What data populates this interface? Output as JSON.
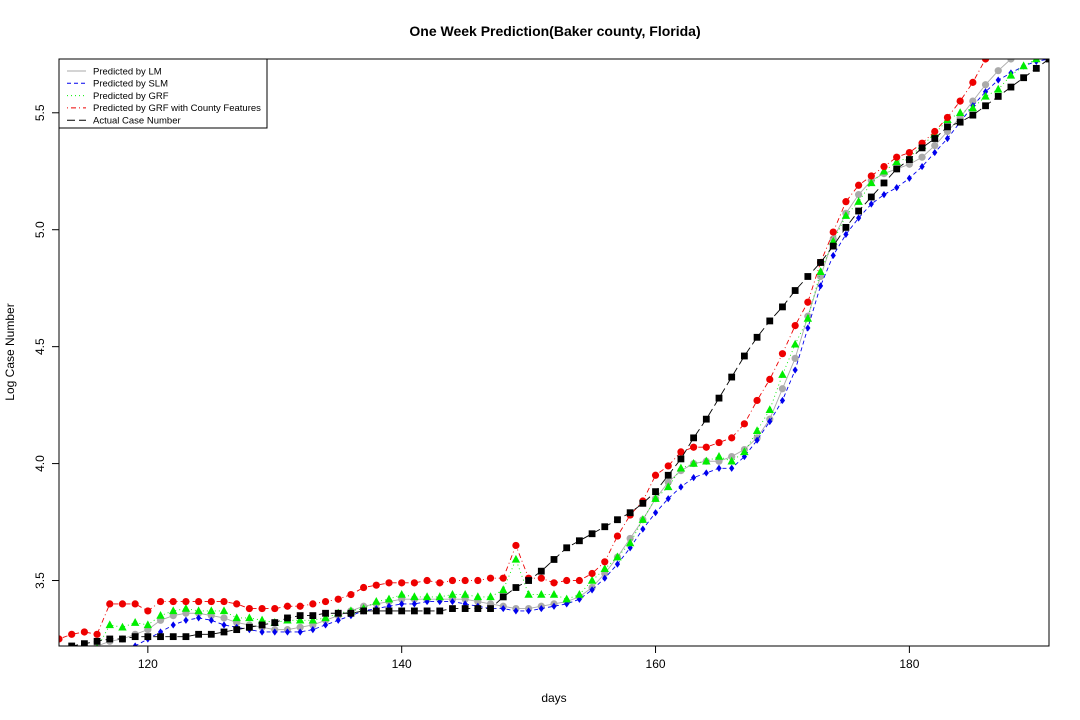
{
  "chart_data": {
    "type": "line",
    "title": "One Week Prediction(Baker county, Florida)",
    "xlabel": "days",
    "ylabel": "Log Case Number",
    "xlim": [
      113,
      191
    ],
    "ylim": [
      3.22,
      5.73
    ],
    "xticks": [
      120,
      140,
      160,
      180
    ],
    "yticks": [
      3.5,
      4.0,
      4.5,
      5.0,
      5.5
    ],
    "legend_position": "top-left",
    "x": [
      113,
      114,
      115,
      116,
      117,
      118,
      119,
      120,
      121,
      122,
      123,
      124,
      125,
      126,
      127,
      128,
      129,
      130,
      131,
      132,
      133,
      134,
      135,
      136,
      137,
      138,
      139,
      140,
      141,
      142,
      143,
      144,
      145,
      146,
      147,
      148,
      149,
      150,
      151,
      152,
      153,
      154,
      155,
      156,
      157,
      158,
      159,
      160,
      161,
      162,
      163,
      164,
      165,
      166,
      167,
      168,
      169,
      170,
      171,
      172,
      173,
      174,
      175,
      176,
      177,
      178,
      179,
      180,
      181,
      182,
      183,
      184,
      185,
      186,
      187,
      188,
      189,
      190,
      191
    ],
    "series": [
      {
        "name": "Predicted by LM",
        "color": "#aaaaaa",
        "marker": "circle",
        "line_style": "solid",
        "values": [
          3.2,
          3.2,
          3.21,
          3.22,
          3.24,
          3.25,
          3.27,
          3.29,
          3.33,
          3.35,
          3.36,
          3.36,
          3.35,
          3.34,
          3.32,
          3.31,
          3.3,
          3.29,
          3.29,
          3.3,
          3.31,
          3.33,
          3.35,
          3.37,
          3.39,
          3.4,
          3.41,
          3.42,
          3.42,
          3.42,
          3.42,
          3.42,
          3.42,
          3.41,
          3.4,
          3.39,
          3.38,
          3.38,
          3.39,
          3.4,
          3.41,
          3.43,
          3.47,
          3.53,
          3.6,
          3.68,
          3.76,
          3.85,
          3.92,
          3.97,
          4.0,
          4.01,
          4.01,
          4.03,
          4.06,
          4.11,
          4.19,
          4.32,
          4.45,
          4.63,
          4.8,
          4.96,
          5.07,
          5.15,
          5.21,
          5.24,
          5.26,
          5.28,
          5.31,
          5.36,
          5.42,
          5.48,
          5.55,
          5.62,
          5.68,
          5.73,
          5.76,
          5.78,
          5.8
        ]
      },
      {
        "name": "Predicted by SLM",
        "color": "#0000ee",
        "marker": "diamond",
        "line_style": "dashed",
        "values": [
          3.18,
          3.18,
          3.19,
          3.19,
          3.19,
          3.2,
          3.22,
          3.25,
          3.28,
          3.31,
          3.33,
          3.34,
          3.33,
          3.31,
          3.3,
          3.29,
          3.28,
          3.28,
          3.28,
          3.28,
          3.29,
          3.31,
          3.33,
          3.35,
          3.37,
          3.38,
          3.39,
          3.4,
          3.4,
          3.41,
          3.41,
          3.41,
          3.4,
          3.39,
          3.38,
          3.38,
          3.37,
          3.37,
          3.38,
          3.39,
          3.4,
          3.42,
          3.46,
          3.51,
          3.57,
          3.64,
          3.72,
          3.79,
          3.85,
          3.9,
          3.94,
          3.96,
          3.98,
          3.98,
          4.03,
          4.1,
          4.18,
          4.27,
          4.4,
          4.58,
          4.76,
          4.89,
          4.98,
          5.05,
          5.11,
          5.15,
          5.18,
          5.22,
          5.27,
          5.33,
          5.39,
          5.46,
          5.53,
          5.59,
          5.64,
          5.67,
          5.7,
          5.72,
          5.73
        ]
      },
      {
        "name": "Predicted by GRF",
        "color": "#00ee00",
        "marker": "triangle",
        "line_style": "dotted",
        "values": [
          3.18,
          3.19,
          3.2,
          3.21,
          3.31,
          3.3,
          3.32,
          3.31,
          3.35,
          3.37,
          3.38,
          3.37,
          3.37,
          3.37,
          3.34,
          3.34,
          3.33,
          3.32,
          3.33,
          3.33,
          3.33,
          3.34,
          3.36,
          3.37,
          3.38,
          3.41,
          3.42,
          3.44,
          3.43,
          3.43,
          3.43,
          3.44,
          3.44,
          3.43,
          3.43,
          3.46,
          3.59,
          3.44,
          3.44,
          3.44,
          3.42,
          3.44,
          3.5,
          3.55,
          3.6,
          3.66,
          3.76,
          3.85,
          3.9,
          3.98,
          4.0,
          4.01,
          4.03,
          4.01,
          4.05,
          4.14,
          4.23,
          4.38,
          4.51,
          4.62,
          4.82,
          4.95,
          5.06,
          5.12,
          5.2,
          5.25,
          5.29,
          5.31,
          5.36,
          5.41,
          5.47,
          5.5,
          5.52,
          5.57,
          5.6,
          5.66,
          5.7,
          5.73,
          5.75
        ]
      },
      {
        "name": "Predicted by GRF with County Features",
        "color": "#ee0000",
        "marker": "circle",
        "line_style": "dotdash",
        "values": [
          3.25,
          3.27,
          3.28,
          3.27,
          3.4,
          3.4,
          3.4,
          3.37,
          3.41,
          3.41,
          3.41,
          3.41,
          3.41,
          3.41,
          3.4,
          3.38,
          3.38,
          3.38,
          3.39,
          3.39,
          3.4,
          3.41,
          3.42,
          3.44,
          3.47,
          3.48,
          3.49,
          3.49,
          3.49,
          3.5,
          3.49,
          3.5,
          3.5,
          3.5,
          3.51,
          3.51,
          3.65,
          3.51,
          3.51,
          3.49,
          3.5,
          3.5,
          3.53,
          3.58,
          3.69,
          3.78,
          3.84,
          3.95,
          3.99,
          4.05,
          4.07,
          4.07,
          4.09,
          4.11,
          4.17,
          4.27,
          4.36,
          4.47,
          4.59,
          4.69,
          4.86,
          4.99,
          5.12,
          5.19,
          5.23,
          5.27,
          5.31,
          5.33,
          5.37,
          5.42,
          5.48,
          5.55,
          5.63,
          5.73,
          5.8,
          5.86,
          5.9,
          5.93,
          5.95
        ]
      },
      {
        "name": "Actual Case Number",
        "color": "#000000",
        "marker": "square",
        "line_style": "longdash",
        "values": [
          3.2,
          3.22,
          3.23,
          3.24,
          3.25,
          3.25,
          3.26,
          3.26,
          3.26,
          3.26,
          3.26,
          3.27,
          3.27,
          3.28,
          3.29,
          3.3,
          3.31,
          3.32,
          3.34,
          3.35,
          3.35,
          3.36,
          3.36,
          3.36,
          3.37,
          3.37,
          3.37,
          3.37,
          3.37,
          3.37,
          3.37,
          3.38,
          3.38,
          3.38,
          3.38,
          3.43,
          3.47,
          3.5,
          3.54,
          3.59,
          3.64,
          3.67,
          3.7,
          3.73,
          3.76,
          3.79,
          3.83,
          3.88,
          3.95,
          4.02,
          4.11,
          4.19,
          4.28,
          4.37,
          4.46,
          4.54,
          4.61,
          4.67,
          4.74,
          4.8,
          4.86,
          4.93,
          5.01,
          5.08,
          5.14,
          5.2,
          5.26,
          5.3,
          5.35,
          5.39,
          5.44,
          5.46,
          5.49,
          5.53,
          5.57,
          5.61,
          5.65,
          5.69,
          5.73
        ]
      }
    ]
  }
}
